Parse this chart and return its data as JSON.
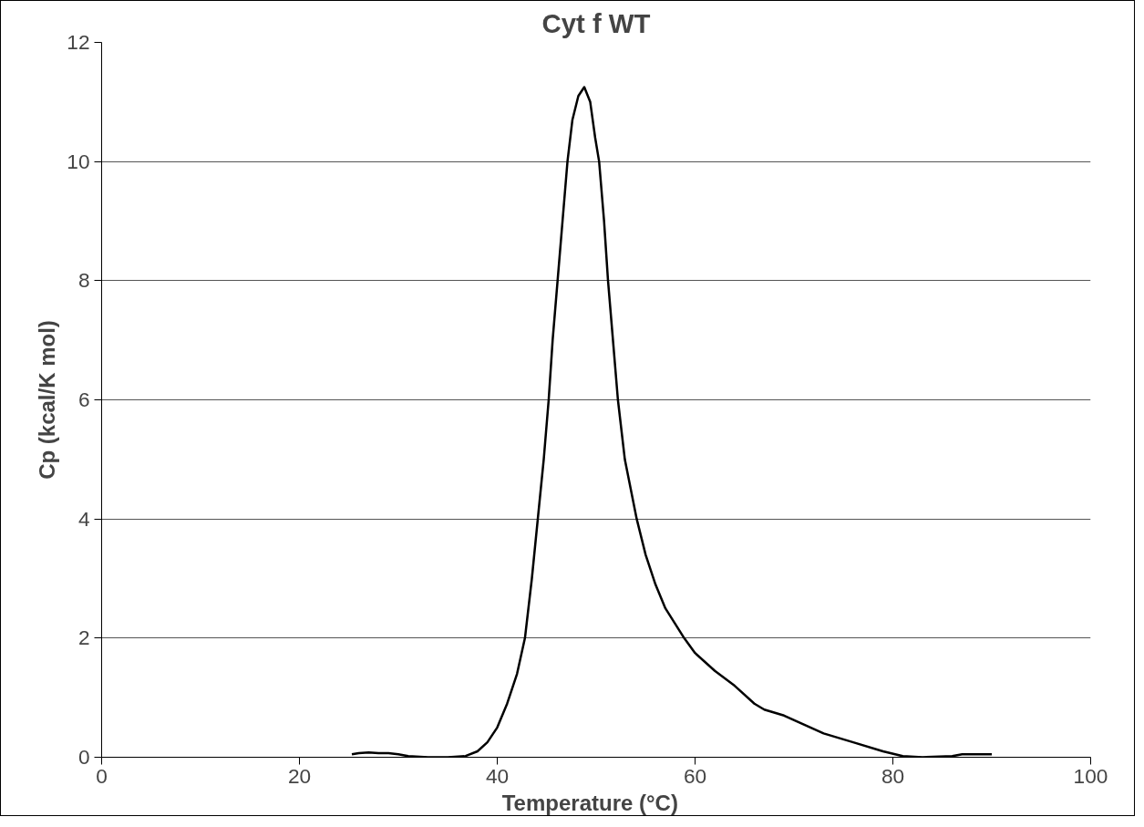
{
  "chart_data": {
    "type": "line",
    "title": "Cyt f WT",
    "xlabel": "Temperature   (°C)",
    "ylabel": "Cp (kcal/K mol)",
    "xlim": [
      0,
      100
    ],
    "xticks": [
      0,
      20,
      40,
      60,
      80,
      100
    ],
    "ylim": [
      0,
      12
    ],
    "yticks": [
      0,
      2,
      4,
      6,
      8,
      10,
      12
    ],
    "grid": "y",
    "marker": "none",
    "line_style": "solid",
    "series": [
      {
        "color": "#000000",
        "x": [
          25.3,
          26,
          27,
          28,
          29,
          30,
          31,
          33,
          35,
          36.8,
          38,
          39,
          40,
          41,
          42,
          42.8,
          43.5,
          44.1,
          44.7,
          45.2,
          45.6,
          46.1,
          46.6,
          47.1,
          47.6,
          48.2,
          48.8,
          49.4,
          49.9,
          50.3,
          50.8,
          51.2,
          51.7,
          52.2,
          52.9,
          54.1,
          55,
          56,
          57,
          58.9,
          60,
          62,
          64,
          66,
          67,
          69,
          71,
          73,
          76,
          79,
          81,
          83,
          86,
          87,
          90
        ],
        "values": [
          0.05,
          0.07,
          0.08,
          0.07,
          0.07,
          0.05,
          0.02,
          0,
          0,
          0.02,
          0.1,
          0.25,
          0.5,
          0.9,
          1.4,
          2.0,
          3.0,
          4.0,
          5.0,
          6.0,
          7.0,
          8.0,
          9.0,
          10.0,
          10.7,
          11.1,
          11.25,
          11.0,
          10.4,
          10.0,
          9.0,
          8.0,
          7.0,
          6.0,
          5.0,
          4.0,
          3.4,
          2.9,
          2.5,
          2.0,
          1.75,
          1.45,
          1.2,
          0.9,
          0.8,
          0.7,
          0.55,
          0.4,
          0.25,
          0.1,
          0.02,
          0,
          0.02,
          0.05,
          0.05
        ]
      }
    ]
  }
}
